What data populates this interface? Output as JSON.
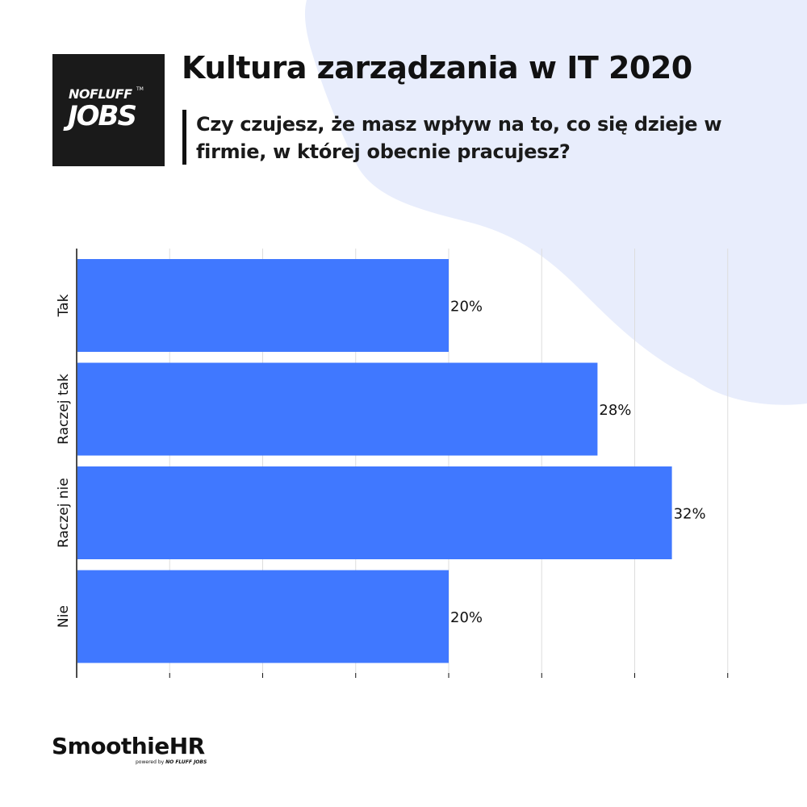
{
  "header": {
    "logo_top": "NOFLUFF",
    "logo_tm": "TM",
    "logo_bottom": "JOBS",
    "title": "Kultura zarządzania w IT 2020",
    "subtitle": "Czy czujesz, że masz wpływ na to, co się dzieje w firmie, w której obecnie pracujesz?"
  },
  "chart_data": {
    "type": "bar",
    "orientation": "horizontal",
    "categories": [
      "Tak",
      "Raczej tak",
      "Raczej nie",
      "Nie"
    ],
    "values": [
      20,
      28,
      32,
      20
    ],
    "labels": [
      "20%",
      "28%",
      "32%",
      "20%"
    ],
    "unit": "%",
    "xlim": [
      0,
      35
    ],
    "grid": true,
    "legend": "none",
    "bar_color": "#4078ff"
  },
  "footer": {
    "brand": "SmoothieHR",
    "powered_by": "powered by",
    "powered_brand": "NO FLUFF JOBS"
  },
  "colors": {
    "background_blob": "#e8edfc",
    "bar": "#4078ff",
    "grid": "#dddddd",
    "axis": "#111111"
  }
}
